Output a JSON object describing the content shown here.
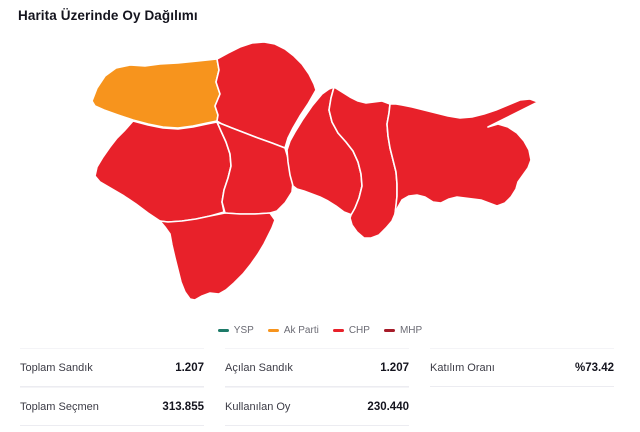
{
  "header": {
    "title": "Harita Üzerinde Oy Dağılımı"
  },
  "legend": {
    "items": [
      {
        "label": "YSP",
        "color": "#1d7a68"
      },
      {
        "label": "Ak Parti",
        "color": "#f7941d"
      },
      {
        "label": "CHP",
        "color": "#e8212a"
      },
      {
        "label": "MHP",
        "color": "#a61b29"
      }
    ]
  },
  "map": {
    "party_colors": {
      "YSP": "#1d7a68",
      "Ak Parti": "#f7941d",
      "CHP": "#e8212a",
      "MHP": "#a61b29"
    },
    "districts": [
      {
        "name": "district-northwest",
        "party": "Ak Parti"
      },
      {
        "name": "district-north-center",
        "party": "CHP"
      },
      {
        "name": "district-west",
        "party": "CHP"
      },
      {
        "name": "district-center",
        "party": "CHP"
      },
      {
        "name": "district-south",
        "party": "CHP"
      },
      {
        "name": "district-mid-east",
        "party": "CHP"
      },
      {
        "name": "district-east-center",
        "party": "CHP"
      },
      {
        "name": "district-east",
        "party": "CHP"
      }
    ]
  },
  "stats": {
    "rows": [
      {
        "cells": [
          {
            "label": "Toplam Sandık",
            "value": "1.207"
          },
          {
            "label": "Açılan Sandık",
            "value": "1.207"
          },
          {
            "label": "Katılım Oranı",
            "value": "%73.42"
          }
        ]
      },
      {
        "cells": [
          {
            "label": "Toplam Seçmen",
            "value": "313.855"
          },
          {
            "label": "Kullanılan Oy",
            "value": "230.440"
          }
        ]
      }
    ]
  }
}
